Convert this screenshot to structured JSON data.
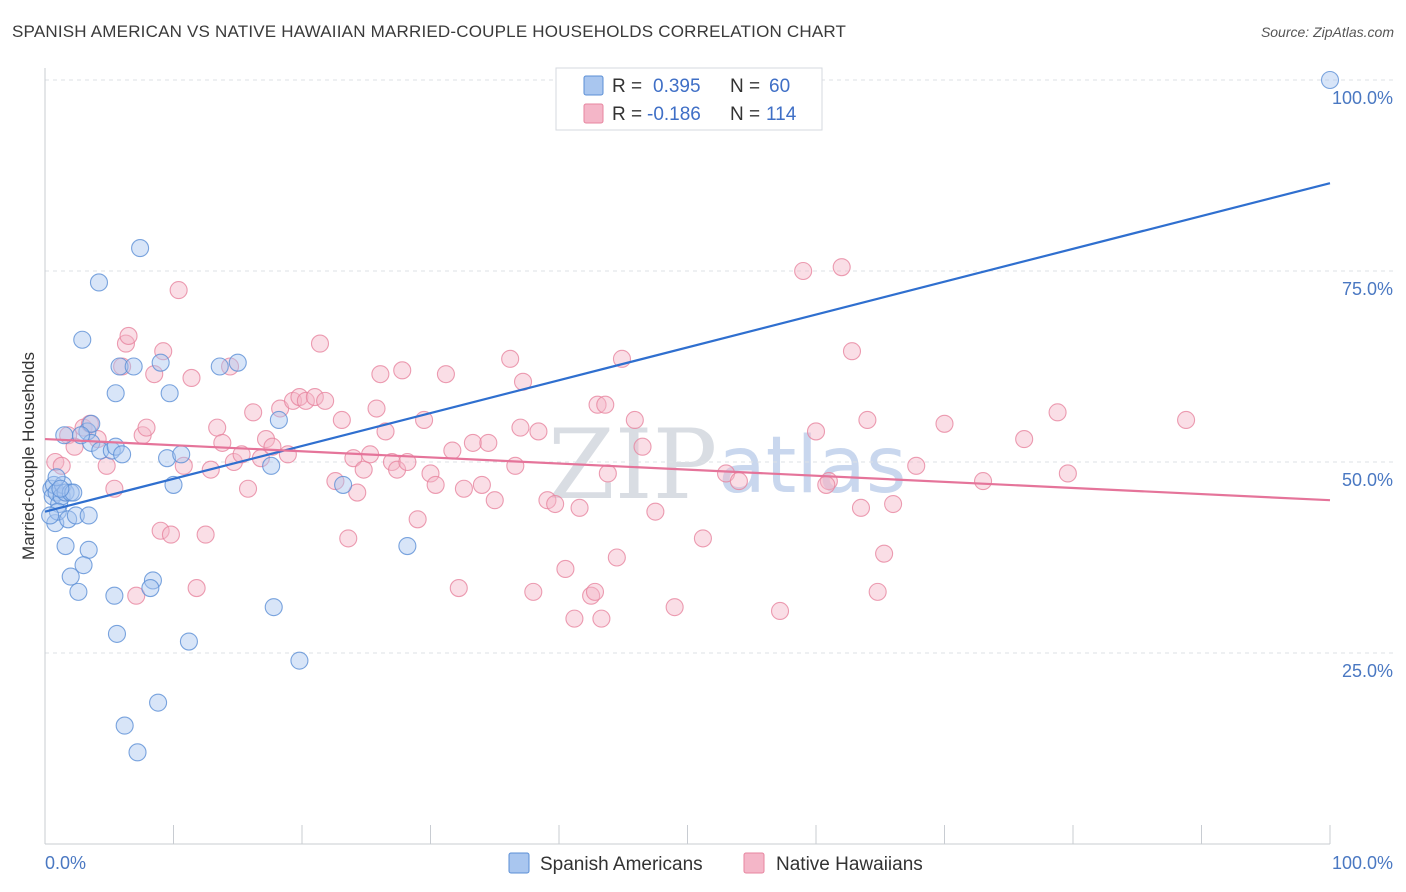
{
  "header": {
    "title": "SPANISH AMERICAN VS NATIVE HAWAIIAN MARRIED-COUPLE HOUSEHOLDS CORRELATION CHART",
    "source": "Source: ZipAtlas.com"
  },
  "legend": {
    "rows": [
      {
        "r_label": "R =",
        "r_value": "0.395",
        "n_label": "N =",
        "n_value": "60",
        "color": "#a9c6ef"
      },
      {
        "r_label": "R =",
        "r_value": "-0.186",
        "n_label": "N =",
        "n_value": "114",
        "color": "#f4b6c8"
      }
    ]
  },
  "bottom_legend": [
    {
      "label": "Spanish Americans",
      "color": "#a9c6ef"
    },
    {
      "label": "Native Hawaiians",
      "color": "#f4b6c8"
    }
  ],
  "watermark": {
    "zip": "ZIP",
    "atlas": "atlas"
  },
  "chart_data": {
    "type": "scatter",
    "ylabel": "Married-couple Households",
    "xlim": [
      0,
      100
    ],
    "ylim": [
      0,
      100
    ],
    "x_tick_labels": [
      {
        "value": 0,
        "label": "0.0%"
      },
      {
        "value": 100,
        "label": "100.0%"
      }
    ],
    "y_tick_labels": [
      {
        "value": 25,
        "label": "25.0%"
      },
      {
        "value": 50,
        "label": "50.0%"
      },
      {
        "value": 75,
        "label": "75.0%"
      },
      {
        "value": 100,
        "label": "100.0%"
      }
    ],
    "grid": true,
    "series": [
      {
        "name": "Spanish Americans",
        "color": "#5b8fd6",
        "fill": "#a9c6ef",
        "trend": {
          "x": [
            0,
            100
          ],
          "y": [
            43.5,
            86.5
          ],
          "color": "#2f6fcf"
        },
        "points": [
          [
            0.5,
            46.5
          ],
          [
            0.6,
            45.5
          ],
          [
            0.7,
            47
          ],
          [
            0.9,
            46
          ],
          [
            1.1,
            44.5
          ],
          [
            1.3,
            45.5
          ],
          [
            1.4,
            47
          ],
          [
            1.6,
            46
          ],
          [
            2.0,
            46
          ],
          [
            2.2,
            46
          ],
          [
            0.8,
            42
          ],
          [
            1.0,
            43.5
          ],
          [
            1.8,
            42.5
          ],
          [
            2.4,
            43
          ],
          [
            3.4,
            43
          ],
          [
            0.9,
            48
          ],
          [
            1.5,
            53.5
          ],
          [
            3.3,
            54
          ],
          [
            3.6,
            52.5
          ],
          [
            4.3,
            51.5
          ],
          [
            5.2,
            51.5
          ],
          [
            3.6,
            55
          ],
          [
            2.8,
            53.5
          ],
          [
            5.5,
            52
          ],
          [
            6.0,
            51
          ],
          [
            1.6,
            39
          ],
          [
            3.4,
            38.5
          ],
          [
            3.0,
            36.5
          ],
          [
            2.0,
            35
          ],
          [
            2.6,
            33
          ],
          [
            5.4,
            32.5
          ],
          [
            8.4,
            34.5
          ],
          [
            8.2,
            33.5
          ],
          [
            5.6,
            27.5
          ],
          [
            11.2,
            26.5
          ],
          [
            8.8,
            18.5
          ],
          [
            6.2,
            15.5
          ],
          [
            7.2,
            12
          ],
          [
            7.4,
            78
          ],
          [
            4.2,
            73.5
          ],
          [
            2.9,
            66
          ],
          [
            5.8,
            62.5
          ],
          [
            6.9,
            62.5
          ],
          [
            9.0,
            63
          ],
          [
            13.6,
            62.5
          ],
          [
            15.0,
            63
          ],
          [
            5.5,
            59
          ],
          [
            9.7,
            59
          ],
          [
            18.2,
            55.5
          ],
          [
            9.5,
            50.5
          ],
          [
            10.6,
            51
          ],
          [
            10.0,
            47
          ],
          [
            17.6,
            49.5
          ],
          [
            23.2,
            47
          ],
          [
            28.2,
            39
          ],
          [
            17.8,
            31
          ],
          [
            19.8,
            24
          ],
          [
            100,
            100
          ],
          [
            0.4,
            43
          ],
          [
            1.2,
            46.5
          ]
        ]
      },
      {
        "name": "Native Hawaiians",
        "color": "#e7859f",
        "fill": "#f4b6c8",
        "trend": {
          "x": [
            0,
            100
          ],
          "y": [
            53,
            45
          ],
          "color": "#e5749a"
        },
        "points": [
          [
            0.8,
            50
          ],
          [
            1.3,
            49.5
          ],
          [
            1.8,
            53.5
          ],
          [
            2.3,
            52
          ],
          [
            3.0,
            54.5
          ],
          [
            3.5,
            55
          ],
          [
            4.1,
            53
          ],
          [
            4.8,
            49.5
          ],
          [
            5.4,
            46.5
          ],
          [
            6.0,
            62.5
          ],
          [
            6.3,
            65.5
          ],
          [
            6.5,
            66.5
          ],
          [
            7.1,
            32.5
          ],
          [
            7.6,
            53.5
          ],
          [
            7.9,
            54.5
          ],
          [
            8.5,
            61.5
          ],
          [
            9.0,
            41
          ],
          [
            9.2,
            64.5
          ],
          [
            9.8,
            40.5
          ],
          [
            10.4,
            72.5
          ],
          [
            10.8,
            49.5
          ],
          [
            11.4,
            61
          ],
          [
            11.8,
            33.5
          ],
          [
            12.5,
            40.5
          ],
          [
            12.9,
            49
          ],
          [
            13.4,
            54.5
          ],
          [
            13.8,
            52.5
          ],
          [
            14.4,
            62.5
          ],
          [
            14.7,
            50
          ],
          [
            15.3,
            51
          ],
          [
            15.8,
            46.5
          ],
          [
            16.2,
            56.5
          ],
          [
            16.8,
            50.5
          ],
          [
            17.2,
            53
          ],
          [
            17.7,
            52
          ],
          [
            18.3,
            57
          ],
          [
            18.9,
            51
          ],
          [
            19.3,
            58
          ],
          [
            19.8,
            58.5
          ],
          [
            20.3,
            58
          ],
          [
            21.0,
            58.5
          ],
          [
            21.4,
            65.5
          ],
          [
            21.8,
            58
          ],
          [
            22.6,
            47.5
          ],
          [
            23.1,
            55.5
          ],
          [
            23.6,
            40
          ],
          [
            24.0,
            50.5
          ],
          [
            24.3,
            46
          ],
          [
            24.8,
            49
          ],
          [
            25.3,
            51
          ],
          [
            25.8,
            57
          ],
          [
            26.1,
            61.5
          ],
          [
            26.5,
            54
          ],
          [
            27.0,
            50
          ],
          [
            27.4,
            49
          ],
          [
            27.8,
            62
          ],
          [
            28.2,
            50
          ],
          [
            29.0,
            42.5
          ],
          [
            29.5,
            55.5
          ],
          [
            30.0,
            48.5
          ],
          [
            30.4,
            47
          ],
          [
            31.2,
            61.5
          ],
          [
            31.7,
            51.5
          ],
          [
            32.2,
            33.5
          ],
          [
            32.6,
            46.5
          ],
          [
            33.3,
            52.5
          ],
          [
            34.0,
            47
          ],
          [
            34.5,
            52.5
          ],
          [
            35.0,
            45
          ],
          [
            36.2,
            63.5
          ],
          [
            36.6,
            49.5
          ],
          [
            37.2,
            60.5
          ],
          [
            38.0,
            33
          ],
          [
            38.4,
            54
          ],
          [
            39.1,
            45
          ],
          [
            39.7,
            44.5
          ],
          [
            40.5,
            36
          ],
          [
            41.2,
            29.5
          ],
          [
            41.6,
            44
          ],
          [
            42.5,
            32.5
          ],
          [
            43.0,
            57.5
          ],
          [
            42.8,
            33
          ],
          [
            43.3,
            29.5
          ],
          [
            43.8,
            48.5
          ],
          [
            44.5,
            37.5
          ],
          [
            44.9,
            63.5
          ],
          [
            45.9,
            55.5
          ],
          [
            47.5,
            43.5
          ],
          [
            49.0,
            31
          ],
          [
            51.2,
            40
          ],
          [
            53.0,
            48.5
          ],
          [
            54.0,
            47.5
          ],
          [
            57.2,
            30.5
          ],
          [
            59.0,
            75
          ],
          [
            60.0,
            54
          ],
          [
            61.0,
            47.5
          ],
          [
            60.8,
            47
          ],
          [
            62.0,
            75.5
          ],
          [
            62.8,
            64.5
          ],
          [
            63.5,
            44
          ],
          [
            64.0,
            55.5
          ],
          [
            64.8,
            33
          ],
          [
            65.3,
            38
          ],
          [
            66.0,
            44.5
          ],
          [
            67.8,
            49.5
          ],
          [
            70.0,
            55
          ],
          [
            73.0,
            47.5
          ],
          [
            76.2,
            53
          ],
          [
            78.8,
            56.5
          ],
          [
            79.6,
            48.5
          ],
          [
            88.8,
            55.5
          ],
          [
            43.6,
            57.5
          ],
          [
            37.0,
            54.5
          ],
          [
            46.5,
            52
          ]
        ]
      }
    ]
  }
}
